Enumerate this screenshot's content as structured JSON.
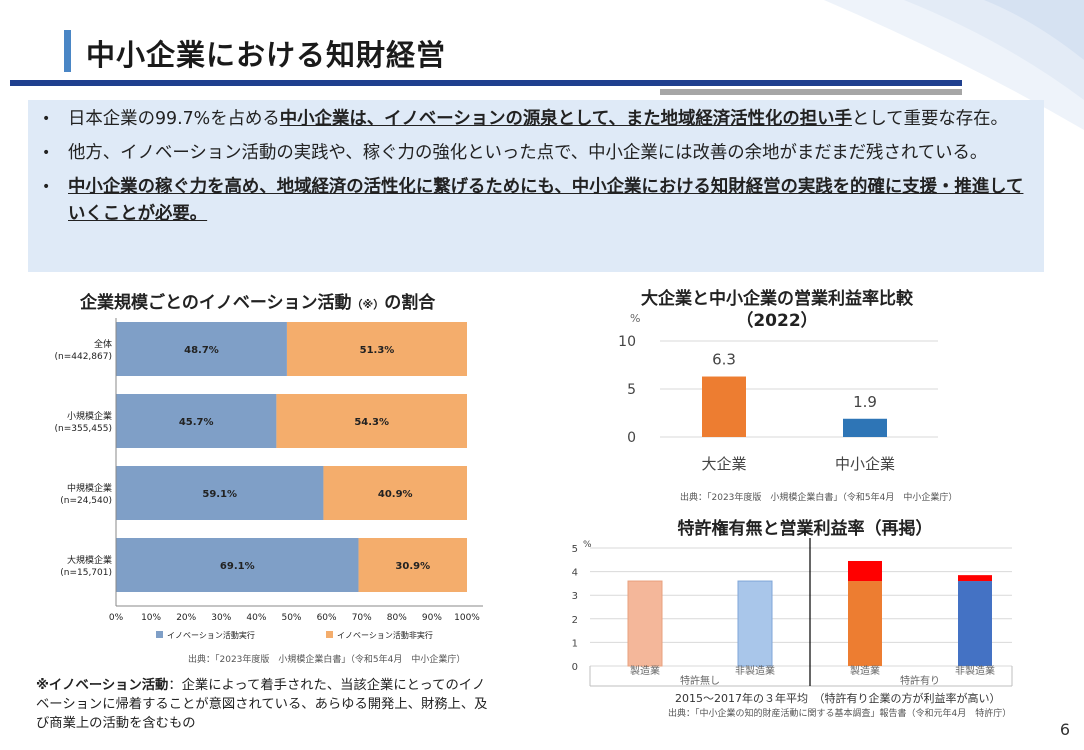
{
  "title": "中小企業における知財経営",
  "bullets": {
    "b1_pre": "日本企業の99.7%を占める",
    "b1_bold": "中小企業は、イノベーションの源泉として、また地域経済活性化の担い手",
    "b1_post": "として重要な存在。",
    "b2": "他方、イノベーション活動の実践や、稼ぐ力の強化といった点で、中小企業には改善の余地がまだまだ残されている。",
    "b3": "中小企業の稼ぐ力を高め、地域経済の活性化に繋げるためにも、中小企業における知財経営の実践を的確に支援・推進していくことが必要。",
    "dot": "•"
  },
  "left_chart": {
    "title": "企業規模ごとのイノベーション活動",
    "title_note": "（※）",
    "title_suffix": "の割合",
    "source": "出典：「2023年度版　小規模企業白書」（令和5年4月　中小企業庁）"
  },
  "note": {
    "label": "※イノベーション活動",
    "text": "：企業によって着手された、当該企業にとってのイノベーションに帰着することが意図されている、あらゆる開発上、財務上、及び商業上の活動を含むもの"
  },
  "mid_chart": {
    "title_line1": "大企業と中小企業の営業利益率比較",
    "title_line2": "（2022）",
    "source": "出典：「2023年度版　小規模企業白書」（令和5年4月　中小企業庁）"
  },
  "patent_chart": {
    "title": "特許権有無と営業利益率（再掲）",
    "caption": "2015～2017年の３年平均　（特許有り企業の方が利益率が高い）",
    "source": "出典：「中小企業の知的財産活動に関する基本調査」報告書（令和元年4月　特許庁）"
  },
  "page_number": "6",
  "chart_data": [
    {
      "type": "bar",
      "orientation": "horizontal",
      "stacked": true,
      "categories": [
        "全体\n(n=442,867)",
        "小規模企業\n(n=355,455)",
        "中規模企業\n(n=24,540)",
        "大規模企業\n(n=15,701)"
      ],
      "series": [
        {
          "name": "イノベーション活動実行",
          "color": "#7f9fc7",
          "values": [
            48.7,
            45.7,
            59.1,
            69.1
          ]
        },
        {
          "name": "イノベーション活動非実行",
          "color": "#f4ad6c",
          "values": [
            51.3,
            54.3,
            40.9,
            30.9
          ]
        }
      ],
      "xticks": [
        "0%",
        "10%",
        "20%",
        "30%",
        "40%",
        "50%",
        "60%",
        "70%",
        "80%",
        "90%",
        "100%"
      ],
      "xlim": [
        0,
        100
      ],
      "legend": "bottom"
    },
    {
      "type": "bar",
      "categories": [
        "大企業",
        "中小企業"
      ],
      "values": [
        6.3,
        1.9
      ],
      "colors": [
        "#ed7d31",
        "#2e75b6"
      ],
      "ylabel": "%",
      "ylim": [
        0,
        10
      ],
      "yticks": [
        "0",
        "5",
        "10"
      ],
      "grid": true
    },
    {
      "type": "bar",
      "stacked": true,
      "categories": [
        "製造業",
        "非製造業",
        "製造業",
        "非製造業"
      ],
      "groups": [
        "特許無し",
        "特許有り"
      ],
      "series": [
        {
          "values": [
            3.6,
            3.6,
            3.6,
            3.6
          ]
        },
        {
          "values": [
            0,
            0,
            0.85,
            0.25
          ],
          "color": "#ff0000"
        }
      ],
      "colors": [
        "#f4b79a",
        "#a9c6ea",
        "#ed7d31",
        "#4472c4"
      ],
      "ylabel": "%",
      "ylim": [
        0,
        5
      ],
      "yticks": [
        "0",
        "1",
        "2",
        "3",
        "4",
        "5"
      ],
      "grid": true
    }
  ]
}
